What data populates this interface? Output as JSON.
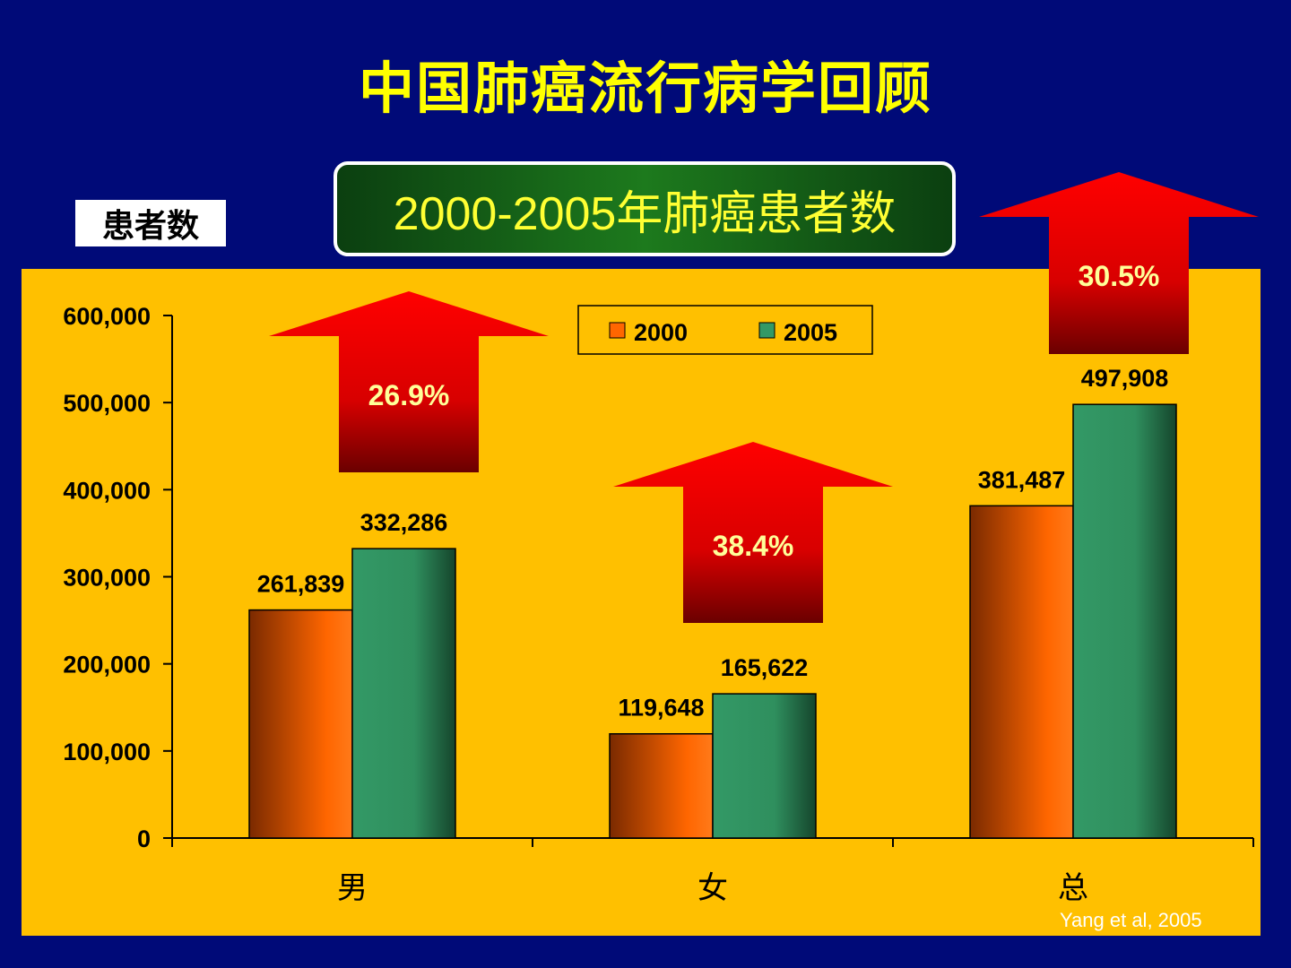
{
  "title": "中国肺癌流行病学回顾",
  "subtitle": "2000-2005年肺癌患者数",
  "source": "Yang et al, 2005",
  "chart_data": {
    "type": "bar",
    "ylabel": "患者数",
    "categories": [
      "男",
      "女",
      "总"
    ],
    "series": [
      {
        "name": "2000",
        "values": [
          261839,
          119648,
          381487
        ],
        "labels": [
          "261,839",
          "119,648",
          "381,487"
        ],
        "color": "#ff6600"
      },
      {
        "name": "2005",
        "values": [
          332286,
          165622,
          497908
        ],
        "labels": [
          "332,286",
          "165,622",
          "497,908"
        ],
        "color": "#339966"
      }
    ],
    "ylim": [
      0,
      600000
    ],
    "yticks": [
      0,
      100000,
      200000,
      300000,
      400000,
      500000,
      600000
    ],
    "ytick_labels": [
      "0",
      "100,000",
      "200,000",
      "300,000",
      "400,000",
      "500,000",
      "600,000"
    ],
    "increase_labels": [
      "26.9%",
      "38.4%",
      "30.5%"
    ],
    "plot_background": "#ffc000",
    "arrow_color": "#e00000",
    "legend_position": "top-center",
    "grid": false
  }
}
